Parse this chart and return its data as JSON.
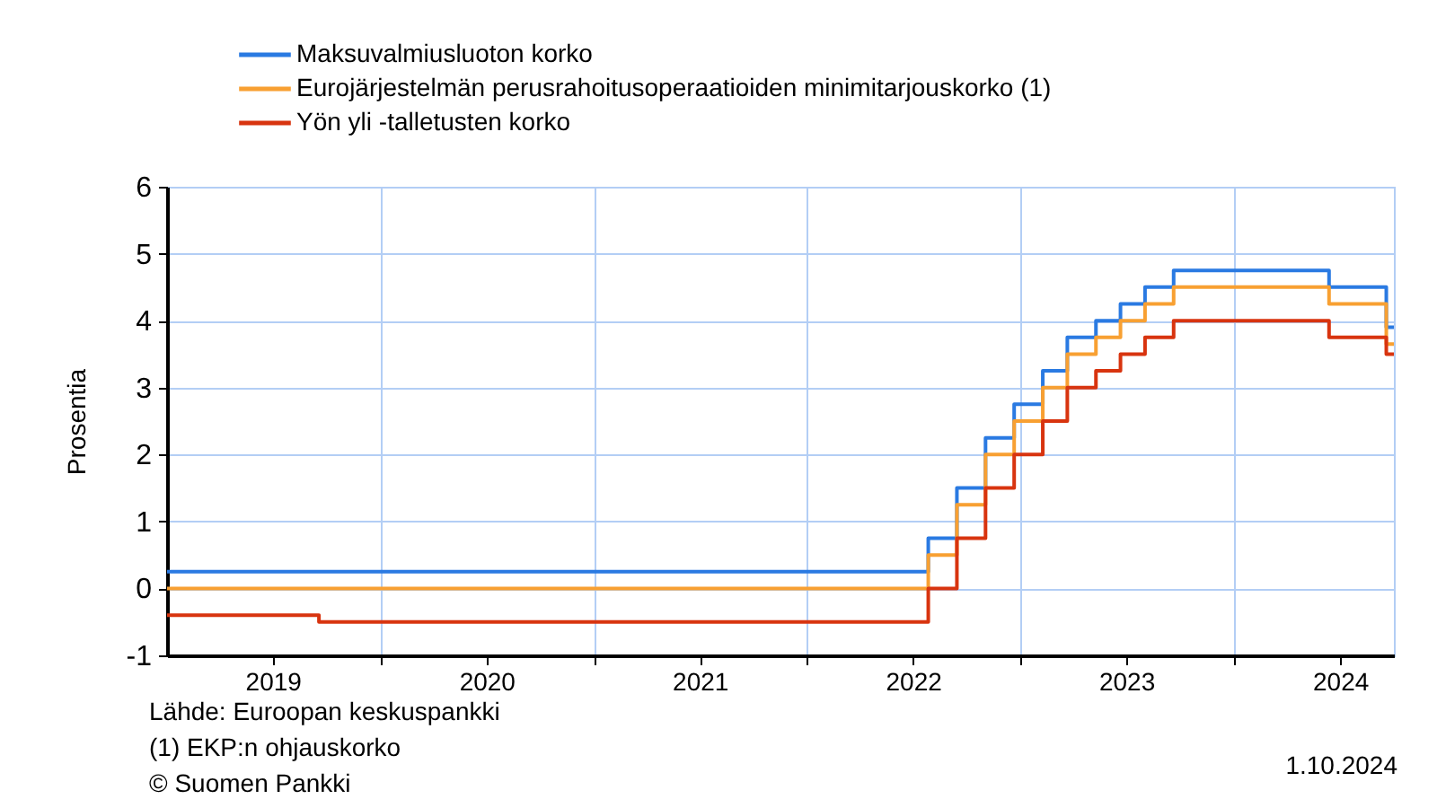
{
  "chart_data": {
    "type": "step",
    "series": [
      {
        "name": "Maksuvalmiusluoton korko",
        "color": "#2a7ae2",
        "x": [
          "2019-01-01",
          "2022-07-27",
          "2022-09-14",
          "2022-11-02",
          "2022-12-21",
          "2023-02-08",
          "2023-03-22",
          "2023-05-10",
          "2023-06-21",
          "2023-08-02",
          "2023-09-20",
          "2024-06-12",
          "2024-09-18",
          "2024-10-01"
        ],
        "values": [
          0.25,
          0.75,
          1.5,
          2.25,
          2.75,
          3.25,
          3.75,
          4.0,
          4.25,
          4.5,
          4.75,
          4.5,
          3.9,
          3.9
        ]
      },
      {
        "name": "Eurojärjestelmän perusrahoitusoperaatioiden minimitarjouskorko (1)",
        "color": "#f8a032",
        "x": [
          "2019-01-01",
          "2022-07-27",
          "2022-09-14",
          "2022-11-02",
          "2022-12-21",
          "2023-02-08",
          "2023-03-22",
          "2023-05-10",
          "2023-06-21",
          "2023-08-02",
          "2023-09-20",
          "2024-06-12",
          "2024-09-18",
          "2024-10-01"
        ],
        "values": [
          0,
          0.5,
          1.25,
          2.0,
          2.5,
          3.0,
          3.5,
          3.75,
          4.0,
          4.25,
          4.5,
          4.25,
          3.65,
          3.65
        ]
      },
      {
        "name": "Yön yli -talletusten korko",
        "color": "#d8340f",
        "x": [
          "2019-01-01",
          "2019-09-18",
          "2022-07-27",
          "2022-09-14",
          "2022-11-02",
          "2022-12-21",
          "2023-02-08",
          "2023-03-22",
          "2023-05-10",
          "2023-06-21",
          "2023-08-02",
          "2023-09-20",
          "2024-06-12",
          "2024-09-18",
          "2024-10-01"
        ],
        "values": [
          -0.4,
          -0.5,
          0,
          0.75,
          1.5,
          2.0,
          2.5,
          3.0,
          3.25,
          3.5,
          3.75,
          4.0,
          3.75,
          3.5,
          3.5
        ]
      }
    ],
    "xlim": [
      "2019-01-01",
      "2024-10-01"
    ],
    "xticks": [
      {
        "value": "2019-07-01",
        "label": "2019"
      },
      {
        "value": "2020-01-01",
        "label": null
      },
      {
        "value": "2020-07-01",
        "label": "2020"
      },
      {
        "value": "2021-01-01",
        "label": null
      },
      {
        "value": "2021-07-01",
        "label": "2021"
      },
      {
        "value": "2022-01-01",
        "label": null
      },
      {
        "value": "2022-07-01",
        "label": "2022"
      },
      {
        "value": "2023-01-01",
        "label": null
      },
      {
        "value": "2023-07-01",
        "label": "2023"
      },
      {
        "value": "2024-01-01",
        "label": null
      },
      {
        "value": "2024-07-01",
        "label": "2024"
      }
    ],
    "ylim": [
      -1,
      6
    ],
    "yticks": [
      -1,
      0,
      1,
      2,
      3,
      4,
      5,
      6
    ],
    "ylabel": "Prosentia",
    "legend": "top",
    "grid": true,
    "annotations": [
      "Lähde: Euroopan keskuspankki",
      "(1) EKP:n ohjauskorko",
      "© Suomen Pankki",
      "1.10.2024"
    ]
  }
}
